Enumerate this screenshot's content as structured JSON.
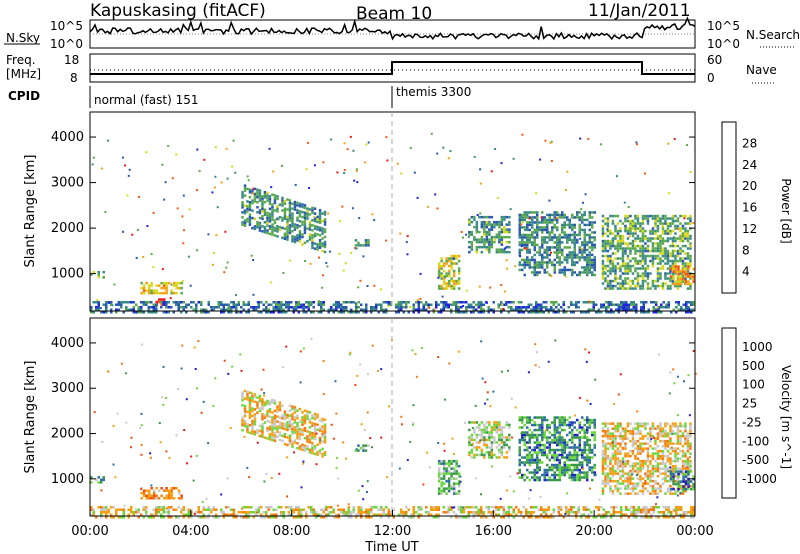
{
  "header": {
    "station": "Kapuskasing (fitACF)",
    "beam": "Beam 10",
    "date": "11/Jan/2011"
  },
  "rows": {
    "nsky_label": "N.Sky",
    "nsky_ticks": [
      "10^5",
      "10^0"
    ],
    "nsearch_label": "N.Search",
    "nsearch_ticks": [
      "10^5",
      "10^0"
    ],
    "freq_label_top": "Freq.",
    "freq_label_bottom": "[MHz]",
    "freq_ticks": [
      "18",
      "8"
    ],
    "nave_label": "Nave",
    "nave_ticks": [
      "60",
      "0"
    ],
    "cpid_label": "CPID",
    "modes": [
      {
        "label": "normal (fast) 151",
        "start_hour": 0
      },
      {
        "label": "themis 3300",
        "start_hour": 12
      }
    ]
  },
  "chart_data": [
    {
      "type": "heatmap",
      "name": "power",
      "ylabel": "Slant Range [km]",
      "yticks": [
        1000,
        2000,
        3000,
        4000
      ],
      "ylim": [
        180,
        4550
      ],
      "xlim": [
        0,
        24
      ],
      "colorbar": {
        "label": "Power [dB]",
        "ticks": [
          "28",
          "24",
          "20",
          "16",
          "12",
          "8",
          "4"
        ],
        "colors": [
          "#e81818",
          "#f65a10",
          "#f5a012",
          "#d8d818",
          "#5aa84c",
          "#3a8a86",
          "#2a58b0",
          "#2020e8"
        ]
      },
      "features": [
        {
          "t0": 0.0,
          "t1": 0.5,
          "r0": 950,
          "r1": 1100,
          "level": 0.45
        },
        {
          "t0": 2.0,
          "t1": 3.6,
          "r0": 600,
          "r1": 850,
          "level": 0.6
        },
        {
          "t0": 2.6,
          "t1": 2.9,
          "r0": 350,
          "r1": 500,
          "level": 0.95
        },
        {
          "t0": 6.0,
          "t1": 9.3,
          "r0": 1900,
          "r1": 2800,
          "level": 0.35,
          "tilt": true
        },
        {
          "t0": 10.5,
          "t1": 11.0,
          "r0": 1650,
          "r1": 1780,
          "level": 0.3
        },
        {
          "t0": 13.8,
          "t1": 14.6,
          "r0": 700,
          "r1": 1450,
          "level": 0.55
        },
        {
          "t0": 15.0,
          "t1": 16.6,
          "r0": 1500,
          "r1": 2300,
          "level": 0.35
        },
        {
          "t0": 17.0,
          "t1": 20.0,
          "r0": 1000,
          "r1": 2400,
          "level": 0.3
        },
        {
          "t0": 20.3,
          "t1": 23.8,
          "r0": 700,
          "r1": 2300,
          "level": 0.4
        },
        {
          "t0": 23.0,
          "t1": 23.9,
          "r0": 800,
          "r1": 1200,
          "level": 0.7
        },
        {
          "t0": 0.0,
          "t1": 24.0,
          "r0": 180,
          "r1": 450,
          "level": 0.25
        }
      ]
    },
    {
      "type": "heatmap",
      "name": "velocity",
      "ylabel": "Slant Range [km]",
      "xlabel": "Time UT",
      "yticks": [
        1000,
        2000,
        3000,
        4000
      ],
      "ylim": [
        180,
        4550
      ],
      "xlim": [
        0,
        24
      ],
      "xticks": [
        "00:00",
        "04:00",
        "08:00",
        "12:00",
        "16:00",
        "20:00",
        "00:00"
      ],
      "colorbar": {
        "label": "Velocity [m s^-1]",
        "ticks": [
          "1000",
          "500",
          "100",
          "25",
          "-25",
          "-100",
          "-500",
          "-1000"
        ],
        "colors": [
          "#2020c8",
          "#2e6ea6",
          "#3a9a4a",
          "#6ad83a",
          "#c8c8c8",
          "#f5a012",
          "#f57a10",
          "#f04a10",
          "#e81818"
        ]
      },
      "features": [
        {
          "t0": 0.0,
          "t1": 0.5,
          "r0": 950,
          "r1": 1100,
          "level": 0.7
        },
        {
          "t0": 2.0,
          "t1": 3.6,
          "r0": 600,
          "r1": 850,
          "level": 0.3
        },
        {
          "t0": 6.0,
          "t1": 9.3,
          "r0": 1900,
          "r1": 2800,
          "level": 0.45,
          "tilt": true
        },
        {
          "t0": 10.5,
          "t1": 11.0,
          "r0": 1650,
          "r1": 1780,
          "level": 0.65
        },
        {
          "t0": 13.8,
          "t1": 14.6,
          "r0": 700,
          "r1": 1450,
          "level": 0.65
        },
        {
          "t0": 15.0,
          "t1": 16.6,
          "r0": 1500,
          "r1": 2300,
          "level": 0.55
        },
        {
          "t0": 17.0,
          "t1": 20.0,
          "r0": 1000,
          "r1": 2400,
          "level": 0.75
        },
        {
          "t0": 20.3,
          "t1": 23.8,
          "r0": 700,
          "r1": 2300,
          "level": 0.45
        },
        {
          "t0": 23.0,
          "t1": 23.9,
          "r0": 800,
          "r1": 1200,
          "level": 0.8
        },
        {
          "t0": 0.0,
          "t1": 24.0,
          "r0": 180,
          "r1": 450,
          "level": 0.45
        }
      ]
    }
  ]
}
